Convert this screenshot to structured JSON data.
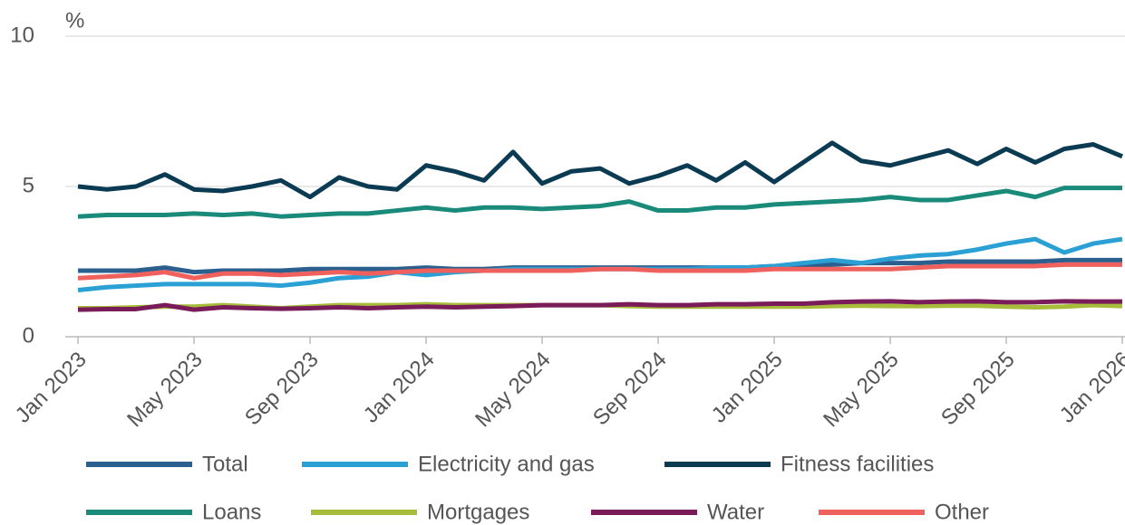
{
  "chart_data": {
    "type": "line",
    "y_unit": "%",
    "categories": [
      "Jan 2023",
      null,
      null,
      null,
      "May 2023",
      null,
      null,
      null,
      "Sep 2023",
      null,
      null,
      null,
      "Jan 2024",
      null,
      null,
      null,
      "May 2024",
      null,
      null,
      null,
      "Sep 2024",
      null,
      null,
      null,
      "Jan 2025",
      null,
      null,
      null,
      "May 2025",
      null,
      null,
      null,
      "Sep 2025",
      null,
      null,
      null,
      "Jan 2026"
    ],
    "ylim": [
      0,
      10
    ],
    "yticks": [
      0,
      5,
      10
    ],
    "grid": true,
    "series": [
      {
        "name": "Total",
        "color": "#2b5f8e",
        "values": [
          2.2,
          2.2,
          2.2,
          2.3,
          2.15,
          2.2,
          2.2,
          2.2,
          2.25,
          2.25,
          2.25,
          2.25,
          2.3,
          2.25,
          2.25,
          2.3,
          2.3,
          2.3,
          2.3,
          2.3,
          2.3,
          2.3,
          2.3,
          2.3,
          2.35,
          2.35,
          2.4,
          2.45,
          2.45,
          2.45,
          2.5,
          2.5,
          2.5,
          2.5,
          2.55,
          2.55,
          2.55
        ]
      },
      {
        "name": "Electricity and gas",
        "color": "#2aa0d4",
        "values": [
          1.55,
          1.65,
          1.7,
          1.75,
          1.75,
          1.75,
          1.75,
          1.7,
          1.8,
          1.95,
          2.0,
          2.15,
          2.05,
          2.15,
          2.2,
          2.25,
          2.25,
          2.25,
          2.25,
          2.25,
          2.25,
          2.25,
          2.3,
          2.3,
          2.35,
          2.45,
          2.55,
          2.45,
          2.6,
          2.7,
          2.75,
          2.9,
          3.1,
          3.25,
          2.8,
          3.1,
          3.25
        ]
      },
      {
        "name": "Fitness facilities",
        "color": "#0b3b52",
        "values": [
          5.0,
          4.9,
          5.0,
          5.4,
          4.9,
          4.85,
          5.0,
          5.2,
          4.65,
          5.3,
          5.0,
          4.9,
          5.7,
          5.5,
          5.2,
          6.15,
          5.1,
          5.5,
          5.6,
          5.1,
          5.35,
          5.7,
          5.2,
          5.8,
          5.15,
          5.8,
          6.45,
          5.85,
          5.7,
          5.95,
          6.2,
          5.75,
          6.25,
          5.8,
          6.25,
          6.4,
          6.0
        ]
      },
      {
        "name": "Loans",
        "color": "#1a8a7a",
        "values": [
          4.0,
          4.05,
          4.05,
          4.05,
          4.1,
          4.05,
          4.1,
          4.0,
          4.05,
          4.1,
          4.1,
          4.2,
          4.3,
          4.2,
          4.3,
          4.3,
          4.25,
          4.3,
          4.35,
          4.5,
          4.2,
          4.2,
          4.3,
          4.3,
          4.4,
          4.45,
          4.5,
          4.55,
          4.65,
          4.55,
          4.55,
          4.7,
          4.85,
          4.65,
          4.95,
          4.95,
          4.95
        ]
      },
      {
        "name": "Mortgages",
        "color": "#a6bc3a",
        "values": [
          0.95,
          0.95,
          0.98,
          1.0,
          1.0,
          1.05,
          1.0,
          0.95,
          1.0,
          1.05,
          1.05,
          1.05,
          1.08,
          1.05,
          1.05,
          1.05,
          1.05,
          1.05,
          1.05,
          1.02,
          1.0,
          1.0,
          1.0,
          1.0,
          1.0,
          1.0,
          1.02,
          1.03,
          1.02,
          1.02,
          1.03,
          1.03,
          1.0,
          0.98,
          1.0,
          1.05,
          1.02
        ]
      },
      {
        "name": "Water",
        "color": "#7a1b5a",
        "values": [
          0.9,
          0.92,
          0.92,
          1.05,
          0.9,
          0.98,
          0.95,
          0.93,
          0.95,
          0.98,
          0.95,
          0.98,
          1.0,
          0.98,
          1.0,
          1.02,
          1.05,
          1.05,
          1.05,
          1.08,
          1.05,
          1.05,
          1.08,
          1.08,
          1.1,
          1.1,
          1.15,
          1.17,
          1.18,
          1.15,
          1.17,
          1.18,
          1.15,
          1.15,
          1.18,
          1.17,
          1.17
        ]
      },
      {
        "name": "Other",
        "color": "#f0605d",
        "values": [
          1.95,
          2.0,
          2.05,
          2.15,
          1.95,
          2.1,
          2.1,
          2.05,
          2.1,
          2.15,
          2.1,
          2.15,
          2.2,
          2.2,
          2.2,
          2.2,
          2.2,
          2.2,
          2.25,
          2.25,
          2.2,
          2.2,
          2.2,
          2.2,
          2.25,
          2.25,
          2.25,
          2.25,
          2.25,
          2.3,
          2.35,
          2.35,
          2.35,
          2.35,
          2.4,
          2.4,
          2.4
        ]
      }
    ]
  }
}
